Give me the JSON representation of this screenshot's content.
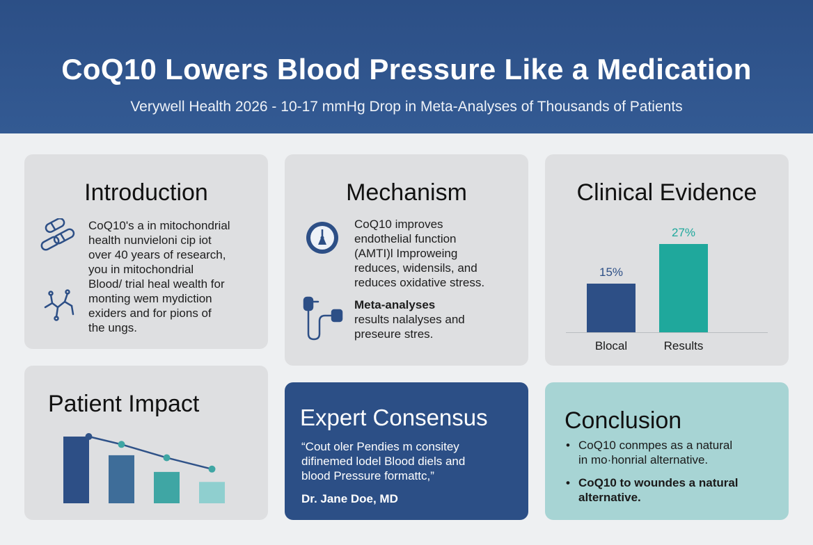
{
  "header": {
    "title": "CoQ10 Lowers Blood Pressure Like a Medication",
    "subtitle": "Verywell Health 2026 - 10-17 mmHg Drop in Meta-Analyses of Thousands of Patients"
  },
  "introduction": {
    "title": "Introduction",
    "lines": [
      "CoQ10's a in mitochondrial",
      "health nunvieloni cip iot",
      "over 40 years of research,",
      "you in mitochondrial",
      "Blood/ trial heal wealth for",
      "monting wem mydiction",
      "exiders and for pions of",
      "the ungs."
    ],
    "icons": [
      "pill-cluster-icon",
      "molecule-icon"
    ]
  },
  "mechanism": {
    "title": "Mechanism",
    "para1": [
      "CoQ10 improves",
      "endothelial function",
      "(AMTI)l Improweing",
      "reduces, widensils, and",
      "reduces oxidative stress."
    ],
    "para2_bold": "Meta-analyses",
    "para2": [
      "results nalalyses and",
      "preseure stres."
    ],
    "icons": [
      "gauge-icon",
      "blood-pressure-cuff-icon"
    ]
  },
  "clinical": {
    "title": "Clinical Evidence"
  },
  "chart_data": [
    {
      "type": "bar",
      "categories": [
        "Blocal",
        "Results"
      ],
      "values": [
        15,
        27
      ],
      "value_labels": [
        "15%",
        "27%"
      ],
      "colors": [
        "#2d4f86",
        "#1fa89c"
      ],
      "title": "",
      "xlabel": "",
      "ylabel": "",
      "ylim": [
        0,
        32
      ]
    },
    {
      "type": "bar",
      "categories": [
        "",
        "",
        "",
        ""
      ],
      "values": [
        100,
        72,
        47,
        32
      ],
      "colors": [
        "#2d4f86",
        "#3e6d99",
        "#3fa6a4",
        "#8fcfcf"
      ],
      "line_values": [
        100,
        82,
        62,
        45
      ],
      "line_color": "#2f5288",
      "title": "",
      "ylim": [
        0,
        100
      ]
    }
  ],
  "patient": {
    "title": "Patient Impact"
  },
  "expert": {
    "title": "Expert Consensus",
    "quote": [
      "“Cout oler Pendies m consitey",
      "difinemed lodel Blood diels and",
      "blood Pressure formattc,”"
    ],
    "author": "Dr. Jane Doe, MD"
  },
  "conclusion": {
    "title": "Conclusion",
    "bullets": [
      {
        "a": "CoQ10 conmpes as a natural",
        "b": "in mo·honrial alternative."
      },
      {
        "a": "CoQ10 to woundes a natural",
        "b": "alternative."
      }
    ]
  },
  "colors": {
    "header": "#2c4f86",
    "card": "#dedfe1",
    "expert": "#2c4f86",
    "conclusion": "#a7d4d4",
    "teal": "#1fa89c",
    "navy": "#2d4f86"
  }
}
